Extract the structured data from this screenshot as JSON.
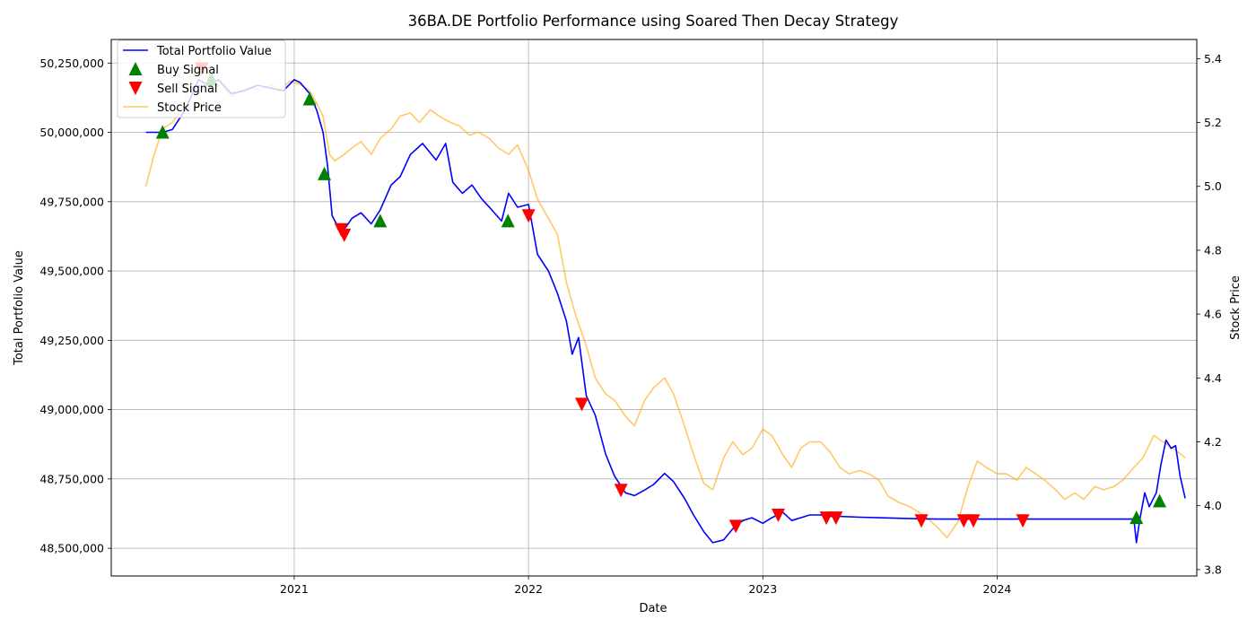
{
  "chart_data": {
    "type": "line",
    "title": "36BA.DE Portfolio Performance using Soared Then Decay Strategy",
    "xlabel": "Date",
    "ylabel": "Total Portfolio Value",
    "y2label": "Stock Price",
    "xlim": [
      "2020-03-22",
      "2024-11-07"
    ],
    "ylim": [
      48400000,
      50335000
    ],
    "y2lim": [
      3.78,
      5.46
    ],
    "grid": true,
    "legend_position": "top-left",
    "x_ticks": [
      "2021",
      "2022",
      "2023",
      "2024"
    ],
    "y_ticks": [
      "48,500,000",
      "48,750,000",
      "49,000,000",
      "49,250,000",
      "49,500,000",
      "49,750,000",
      "50,000,000",
      "50,250,000"
    ],
    "y2_ticks": [
      "3.8",
      "4.0",
      "4.2",
      "4.4",
      "4.6",
      "4.8",
      "5.0",
      "5.2",
      "5.4"
    ],
    "colors": {
      "portfolio": "#0000ff",
      "stock": "#ffa500",
      "buy": "#008000",
      "sell": "#ff0000",
      "grid": "#b0b0b0"
    },
    "series": [
      {
        "name": "Total Portfolio Value",
        "axis": "left",
        "x": [
          "2020-05-15",
          "2020-06-10",
          "2020-06-25",
          "2020-07-15",
          "2020-08-05",
          "2020-08-20",
          "2020-09-05",
          "2020-09-25",
          "2020-10-15",
          "2020-11-05",
          "2020-11-25",
          "2020-12-15",
          "2021-01-01",
          "2021-01-10",
          "2021-01-25",
          "2021-02-05",
          "2021-02-15",
          "2021-02-22",
          "2021-03-01",
          "2021-03-10",
          "2021-03-20",
          "2021-04-01",
          "2021-04-15",
          "2021-05-01",
          "2021-05-15",
          "2021-06-01",
          "2021-06-15",
          "2021-07-01",
          "2021-07-20",
          "2021-08-10",
          "2021-08-25",
          "2021-09-05",
          "2021-09-20",
          "2021-10-05",
          "2021-10-20",
          "2021-11-05",
          "2021-11-20",
          "2021-12-01",
          "2021-12-15",
          "2022-01-01",
          "2022-01-15",
          "2022-02-01",
          "2022-02-15",
          "2022-03-01",
          "2022-03-10",
          "2022-03-20",
          "2022-04-01",
          "2022-04-15",
          "2022-05-01",
          "2022-05-15",
          "2022-06-01",
          "2022-06-15",
          "2022-07-01",
          "2022-07-15",
          "2022-08-01",
          "2022-08-15",
          "2022-09-01",
          "2022-09-15",
          "2022-10-01",
          "2022-10-15",
          "2022-11-01",
          "2022-11-15",
          "2022-12-01",
          "2022-12-15",
          "2023-01-01",
          "2023-01-15",
          "2023-02-01",
          "2023-02-15",
          "2023-03-01",
          "2023-03-15",
          "2023-04-01",
          "2023-04-15",
          "2023-05-01",
          "2023-06-01",
          "2023-07-01",
          "2023-08-01",
          "2023-09-01",
          "2023-10-01",
          "2023-11-01",
          "2023-12-01",
          "2024-01-01",
          "2024-02-01",
          "2024-03-01",
          "2024-04-01",
          "2024-05-01",
          "2024-06-01",
          "2024-07-01",
          "2024-08-01",
          "2024-08-05",
          "2024-08-10",
          "2024-08-18",
          "2024-08-25",
          "2024-09-05",
          "2024-09-12",
          "2024-09-20",
          "2024-09-28",
          "2024-10-05",
          "2024-10-12",
          "2024-10-20"
        ],
        "values": [
          50000000,
          50000000,
          50010000,
          50080000,
          50190000,
          50170000,
          50190000,
          50140000,
          50150000,
          50170000,
          50160000,
          50150000,
          50190000,
          50180000,
          50140000,
          50080000,
          50000000,
          49880000,
          49700000,
          49660000,
          49650000,
          49690000,
          49710000,
          49670000,
          49720000,
          49810000,
          49840000,
          49920000,
          49960000,
          49900000,
          49960000,
          49820000,
          49780000,
          49810000,
          49760000,
          49720000,
          49680000,
          49780000,
          49730000,
          49740000,
          49560000,
          49500000,
          49420000,
          49320000,
          49200000,
          49260000,
          49050000,
          48980000,
          48840000,
          48760000,
          48700000,
          48690000,
          48710000,
          48730000,
          48770000,
          48740000,
          48680000,
          48620000,
          48560000,
          48520000,
          48530000,
          48570000,
          48600000,
          48610000,
          48590000,
          48610000,
          48630000,
          48600000,
          48610000,
          48620000,
          48620000,
          48615000,
          48615000,
          48612000,
          48610000,
          48608000,
          48606000,
          48605000,
          48605000,
          48605000,
          48605000,
          48605000,
          48605000,
          48605000,
          48605000,
          48605000,
          48605000,
          48605000,
          48520000,
          48600000,
          48700000,
          48650000,
          48700000,
          48800000,
          48890000,
          48860000,
          48870000,
          48760000,
          48680000
        ]
      },
      {
        "name": "Stock Price",
        "axis": "right",
        "x": [
          "2020-05-15",
          "2020-05-28",
          "2020-06-10",
          "2020-06-25",
          "2020-07-10",
          "2020-07-25",
          "2020-08-05",
          "2020-08-15",
          "2020-08-25",
          "2020-09-10",
          "2020-09-25",
          "2020-10-10",
          "2020-10-25",
          "2020-11-10",
          "2020-11-25",
          "2020-12-10",
          "2020-12-25",
          "2021-01-10",
          "2021-01-25",
          "2021-02-05",
          "2021-02-15",
          "2021-02-25",
          "2021-03-05",
          "2021-03-20",
          "2021-04-01",
          "2021-04-15",
          "2021-05-01",
          "2021-05-15",
          "2021-06-01",
          "2021-06-15",
          "2021-07-01",
          "2021-07-15",
          "2021-08-01",
          "2021-08-15",
          "2021-09-01",
          "2021-09-15",
          "2021-10-01",
          "2021-10-15",
          "2021-11-01",
          "2021-11-15",
          "2021-12-01",
          "2021-12-15",
          "2022-01-01",
          "2022-01-15",
          "2022-02-01",
          "2022-02-15",
          "2022-03-01",
          "2022-03-15",
          "2022-04-01",
          "2022-04-15",
          "2022-05-01",
          "2022-05-15",
          "2022-06-01",
          "2022-06-15",
          "2022-07-01",
          "2022-07-15",
          "2022-08-01",
          "2022-08-15",
          "2022-09-01",
          "2022-09-15",
          "2022-10-01",
          "2022-10-15",
          "2022-11-01",
          "2022-11-15",
          "2022-12-01",
          "2022-12-15",
          "2023-01-01",
          "2023-01-15",
          "2023-02-01",
          "2023-02-15",
          "2023-03-01",
          "2023-03-15",
          "2023-04-01",
          "2023-04-15",
          "2023-05-01",
          "2023-05-15",
          "2023-06-01",
          "2023-06-15",
          "2023-07-01",
          "2023-07-15",
          "2023-08-01",
          "2023-08-15",
          "2023-09-01",
          "2023-09-15",
          "2023-10-01",
          "2023-10-15",
          "2023-11-01",
          "2023-11-15",
          "2023-12-01",
          "2023-12-15",
          "2024-01-01",
          "2024-01-15",
          "2024-02-01",
          "2024-02-15",
          "2024-03-01",
          "2024-03-15",
          "2024-04-01",
          "2024-04-15",
          "2024-05-01",
          "2024-05-15",
          "2024-06-01",
          "2024-06-15",
          "2024-07-01",
          "2024-07-15",
          "2024-08-01",
          "2024-08-15",
          "2024-09-01",
          "2024-09-15",
          "2024-10-01",
          "2024-10-20"
        ],
        "values": [
          5.0,
          5.1,
          5.18,
          5.2,
          5.24,
          5.33,
          5.4,
          5.37,
          5.3,
          5.32,
          5.28,
          5.3,
          5.31,
          5.3,
          5.32,
          5.3,
          5.33,
          5.32,
          5.3,
          5.26,
          5.22,
          5.1,
          5.08,
          5.1,
          5.12,
          5.14,
          5.1,
          5.15,
          5.18,
          5.22,
          5.23,
          5.2,
          5.24,
          5.22,
          5.2,
          5.19,
          5.16,
          5.17,
          5.15,
          5.12,
          5.1,
          5.13,
          5.05,
          4.96,
          4.9,
          4.85,
          4.7,
          4.6,
          4.5,
          4.4,
          4.35,
          4.33,
          4.28,
          4.25,
          4.33,
          4.37,
          4.4,
          4.35,
          4.25,
          4.16,
          4.07,
          4.05,
          4.15,
          4.2,
          4.16,
          4.18,
          4.24,
          4.22,
          4.16,
          4.12,
          4.18,
          4.2,
          4.2,
          4.17,
          4.12,
          4.1,
          4.11,
          4.1,
          4.08,
          4.03,
          4.01,
          4.0,
          3.98,
          3.96,
          3.93,
          3.9,
          3.95,
          4.05,
          4.14,
          4.12,
          4.1,
          4.1,
          4.08,
          4.12,
          4.1,
          4.08,
          4.05,
          4.02,
          4.04,
          4.02,
          4.06,
          4.05,
          4.06,
          4.08,
          4.12,
          4.15,
          4.22,
          4.2,
          4.18,
          4.15
        ]
      }
    ],
    "markers": [
      {
        "name": "Buy Signal",
        "symbol": "triangle-up",
        "x": [
          "2020-06-10",
          "2020-08-25",
          "2021-01-25",
          "2021-02-17",
          "2021-05-15",
          "2021-11-30",
          "2024-08-05",
          "2024-09-10"
        ],
        "values": [
          50000000,
          50190000,
          50120000,
          49850000,
          49680000,
          49680000,
          48610000,
          48670000
        ]
      },
      {
        "name": "Sell Signal",
        "symbol": "triangle-down",
        "x": [
          "2020-08-10",
          "2021-03-15",
          "2021-03-20",
          "2022-01-01",
          "2022-03-25",
          "2022-05-25",
          "2022-11-20",
          "2023-01-25",
          "2023-04-10",
          "2023-04-25",
          "2023-09-05",
          "2023-11-10",
          "2023-11-25",
          "2024-02-10"
        ],
        "values": [
          50230000,
          49650000,
          49630000,
          49700000,
          49020000,
          48710000,
          48580000,
          48620000,
          48610000,
          48610000,
          48600000,
          48600000,
          48600000,
          48600000
        ]
      }
    ]
  }
}
